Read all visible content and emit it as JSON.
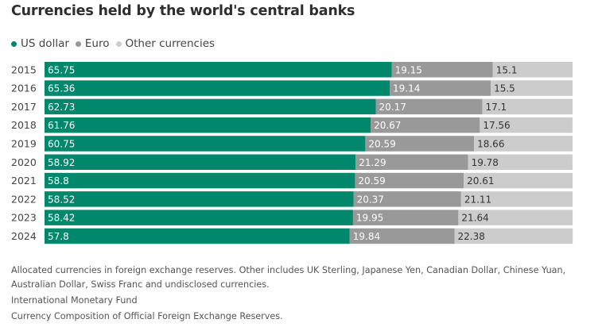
{
  "title": "Currencies held by the world's central banks",
  "legend": [
    {
      "label": "US dollar",
      "color": "#00876c"
    },
    {
      "label": "Euro",
      "color": "#999999"
    },
    {
      "label": "Other currencies",
      "color": "#cccccc"
    }
  ],
  "chart_data": {
    "type": "bar",
    "orientation": "horizontal",
    "stacked": true,
    "title": "Currencies held by the world's central banks",
    "categories": [
      "2015",
      "2016",
      "2017",
      "2018",
      "2019",
      "2020",
      "2021",
      "2022",
      "2023",
      "2024"
    ],
    "series": [
      {
        "name": "US dollar",
        "color": "#00876c",
        "label_color": "#ffffff",
        "values": [
          65.75,
          65.36,
          62.73,
          61.76,
          60.75,
          58.92,
          58.8,
          58.52,
          58.42,
          57.8
        ]
      },
      {
        "name": "Euro",
        "color": "#999999",
        "label_color": "#ffffff",
        "values": [
          19.15,
          19.14,
          20.17,
          20.67,
          20.59,
          21.29,
          20.59,
          20.37,
          19.95,
          19.84
        ]
      },
      {
        "name": "Other currencies",
        "color": "#cccccc",
        "label_color": "#333333",
        "values": [
          15.1,
          15.5,
          17.1,
          17.56,
          18.66,
          19.78,
          20.61,
          21.11,
          21.64,
          22.38
        ]
      }
    ],
    "xlim": [
      0,
      100
    ],
    "legend_position": "top-left",
    "grid": false
  },
  "footer": {
    "note": "Allocated currencies in foreign exchange reserves. Other includes UK Sterling, Japanese Yen, Canadian Dollar, Chinese Yuan, Australian Dollar, Swiss Franc and undisclosed currencies.",
    "source": "International Monetary Fund",
    "subsource": "Currency Composition of Official Foreign Exchange Reserves."
  }
}
